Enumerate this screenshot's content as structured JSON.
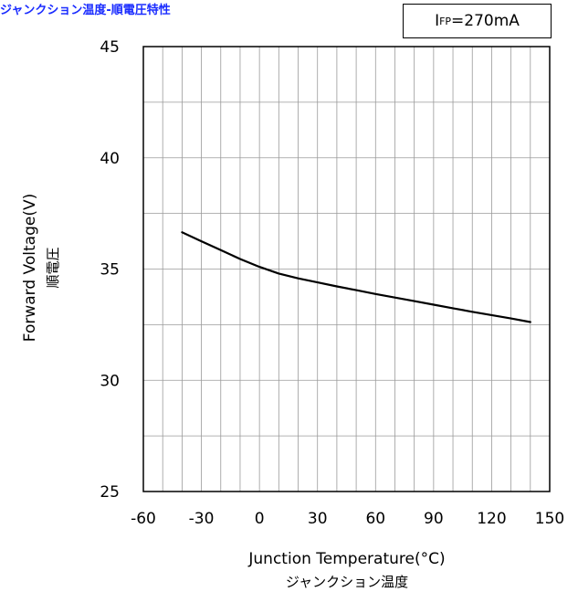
{
  "chart_data": {
    "type": "line",
    "title": "ジャンクション温度-順電圧特性",
    "title_color": "#1a2cff",
    "condition": {
      "prefix": "I",
      "subscript": "FP",
      "value": "=270mA"
    },
    "xlabel": "Junction Temperature(°C)",
    "xlabel_jp": "ジャンクション温度",
    "ylabel": "Forward Voltage(V)",
    "ylabel_jp": "順電圧",
    "xlim": [
      -60,
      150
    ],
    "ylim": [
      25,
      45
    ],
    "x_ticks": [
      -60,
      -30,
      0,
      30,
      60,
      90,
      120,
      150
    ],
    "y_ticks": [
      25,
      30,
      35,
      40,
      45
    ],
    "x_minor_step": 10,
    "y_minor_step": 2.5,
    "grid": true,
    "line_color": "#000000",
    "series": [
      {
        "x": [
          -40,
          -30,
          -20,
          -10,
          0,
          10,
          20,
          30,
          40,
          50,
          60,
          70,
          80,
          90,
          100,
          110,
          120,
          130,
          140
        ],
        "values": [
          36.65,
          36.25,
          35.85,
          35.45,
          35.1,
          34.8,
          34.58,
          34.4,
          34.22,
          34.05,
          33.88,
          33.72,
          33.56,
          33.4,
          33.24,
          33.08,
          32.93,
          32.78,
          32.62
        ]
      }
    ]
  }
}
